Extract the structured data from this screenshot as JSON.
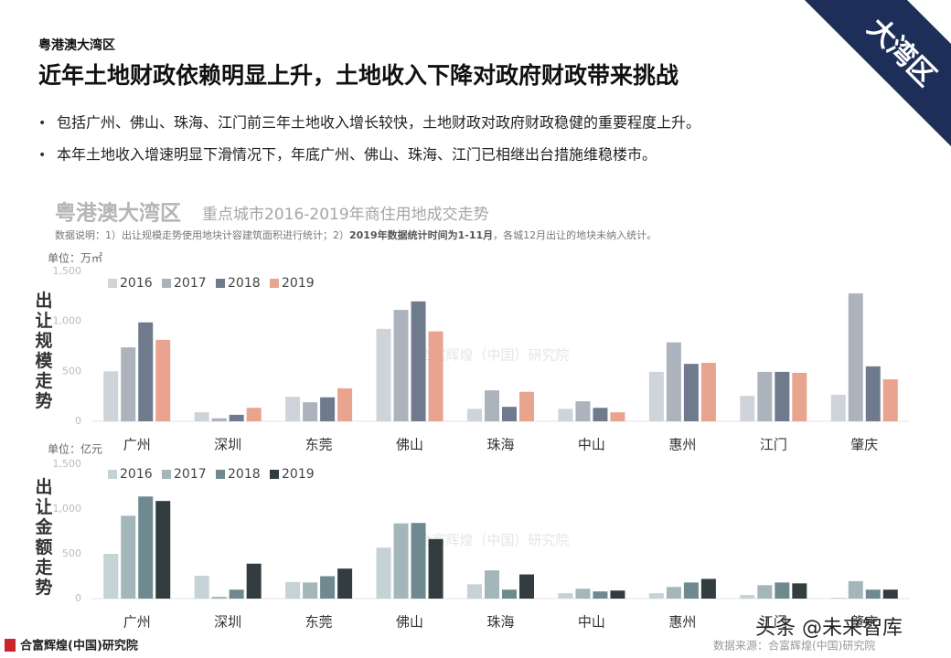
{
  "header": {
    "kicker": "粤港澳大湾区",
    "title": "近年土地财政依赖明显上升，土地收入下降对政府财政带来挑战",
    "tag": "大湾区"
  },
  "bullets": [
    "包括广州、佛山、珠海、江门前三年土地收入增长较快，土地财政对政府财政稳健的重要程度上升。",
    "本年土地收入增速明显下滑情况下，年底广州、佛山、珠海、江门已相继出台措施维稳楼市。"
  ],
  "chart_header": {
    "title": "粤港澳大湾区",
    "subtitle": "重点城市2016-2019年商住用地成交走势",
    "note": [
      "数据说明：1）出让规模走势使用地块计容建筑面积进行统计；2）",
      "2019年数据统计时间为1-11月",
      "，各城12月出让的地块未纳入统计。"
    ]
  },
  "chart_data": [
    {
      "type": "bar",
      "y_title": "出让规模走势",
      "unit_label": "单位：万㎡",
      "watermark": "合富辉煌（中国）研究院",
      "categories": [
        "广州",
        "深圳",
        "东莞",
        "佛山",
        "珠海",
        "中山",
        "惠州",
        "江门",
        "肇庆"
      ],
      "series": [
        {
          "name": "2016",
          "color": "#cfd3da",
          "values": [
            500,
            90,
            245,
            925,
            125,
            125,
            495,
            255,
            265
          ]
        },
        {
          "name": "2017",
          "color": "#adb3bd",
          "values": [
            740,
            30,
            190,
            1115,
            310,
            200,
            790,
            495,
            1280
          ]
        },
        {
          "name": "2018",
          "color": "#6f7b8c",
          "values": [
            990,
            65,
            240,
            1200,
            145,
            135,
            575,
            495,
            550
          ]
        },
        {
          "name": "2019",
          "color": "#e8a48f",
          "values": [
            815,
            135,
            330,
            900,
            295,
            90,
            585,
            485,
            420
          ]
        }
      ],
      "ylim": [
        0,
        1500
      ],
      "yticks": [
        0,
        500,
        {
          "value": 1000,
          "label": "1,000"
        },
        {
          "value": 1500,
          "label": "1,500"
        }
      ]
    },
    {
      "type": "bar",
      "y_title": "出让金额走势",
      "unit_label": "单位：亿元",
      "watermark": "合富辉煌（中国）研究院",
      "categories": [
        "广州",
        "深圳",
        "东莞",
        "佛山",
        "珠海",
        "中山",
        "惠州",
        "江门",
        "肇庆"
      ],
      "series": [
        {
          "name": "2016",
          "color": "#c5d3d6",
          "values": [
            500,
            255,
            185,
            570,
            160,
            60,
            60,
            40,
            10
          ]
        },
        {
          "name": "2017",
          "color": "#a3b6ba",
          "values": [
            925,
            20,
            180,
            840,
            315,
            110,
            130,
            150,
            195
          ]
        },
        {
          "name": "2018",
          "color": "#6e8a90",
          "values": [
            1140,
            100,
            250,
            845,
            100,
            80,
            180,
            180,
            100
          ]
        },
        {
          "name": "2019",
          "color": "#333d40",
          "values": [
            1090,
            390,
            335,
            665,
            270,
            90,
            220,
            170,
            100
          ]
        }
      ],
      "ylim": [
        0,
        1500
      ],
      "yticks": [
        0,
        500,
        {
          "value": 1000,
          "label": "1,000"
        },
        {
          "value": 1500,
          "label": "1,500"
        }
      ]
    }
  ],
  "footer": {
    "logo": "合富辉煌(中国)研究院",
    "source": "数据来源：合富辉煌(中国)研究院",
    "watermark": "头条 @未来智库"
  }
}
